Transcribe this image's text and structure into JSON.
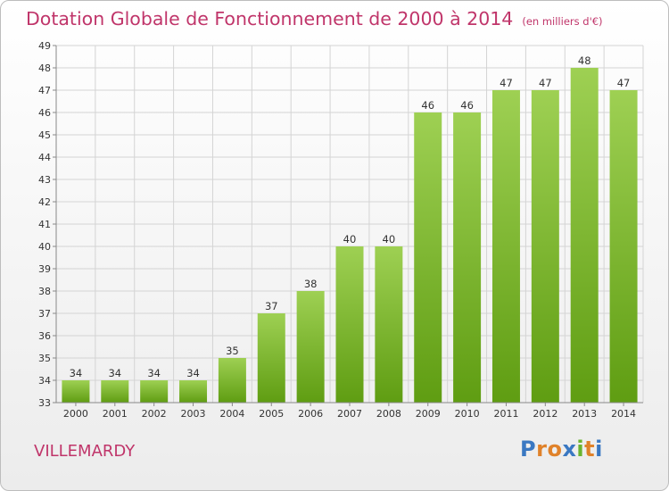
{
  "title": "Dotation Globale de Fonctionnement de 2000 à 2014",
  "subtitle": "(en milliers d'€)",
  "commune": "VILLEMARDY",
  "logo": {
    "letters": [
      "P",
      "r",
      "o",
      "x",
      "i",
      "t",
      "i"
    ],
    "colors": [
      "#3a78c2",
      "#e0822a",
      "#e0822a",
      "#3a78c2",
      "#6ab42f",
      "#e0822a",
      "#3a78c2"
    ]
  },
  "colors": {
    "bar_top": "#9ed053",
    "bar_bottom": "#5f9d12",
    "title": "#c0356a"
  },
  "chart_data": {
    "type": "bar",
    "categories": [
      "2000",
      "2001",
      "2002",
      "2003",
      "2004",
      "2005",
      "2006",
      "2007",
      "2008",
      "2009",
      "2010",
      "2011",
      "2012",
      "2013",
      "2014"
    ],
    "values": [
      34,
      34,
      34,
      34,
      35,
      37,
      38,
      40,
      40,
      46,
      46,
      47,
      47,
      48,
      47
    ],
    "data_labels": [
      "34",
      "34",
      "34",
      "34",
      "35",
      "37",
      "38",
      "40",
      "40",
      "46",
      "46",
      "47",
      "47",
      "48",
      "47"
    ],
    "ylim": [
      33,
      49
    ],
    "yticks": [
      "33",
      "34",
      "35",
      "36",
      "37",
      "38",
      "39",
      "40",
      "41",
      "42",
      "43",
      "44",
      "45",
      "46",
      "47",
      "48",
      "49"
    ],
    "grid": true,
    "xlabel": "",
    "ylabel": ""
  }
}
